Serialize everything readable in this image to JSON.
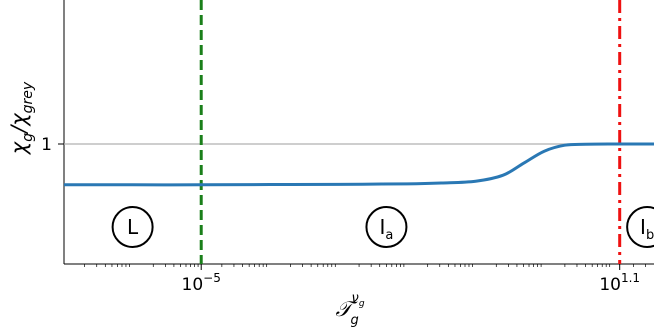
{
  "chart_data": {
    "type": "line",
    "title": "",
    "xlabel": "𝒯_g^{ν_g}",
    "ylabel": "χ_g/χ_grey",
    "x_scale": "log",
    "xlim": [
      -7.0,
      1.6
    ],
    "ylim": [
      0.0,
      2.2
    ],
    "grid": false,
    "legend": "none",
    "x_ticks": [
      {
        "value": -5,
        "base": "10",
        "exponent": "−5"
      },
      {
        "value": 1.1,
        "base": "10",
        "exponent": "1.1"
      }
    ],
    "y_ticks": [
      {
        "value": 1,
        "label": "1"
      }
    ],
    "reference_line": {
      "y": 1,
      "color": "#b0b0b0"
    },
    "vlines": [
      {
        "x": -5,
        "style": "dashed",
        "color": "#1a7f1a"
      },
      {
        "x": 1.1,
        "style": "dashdot",
        "color": "#ee1111"
      }
    ],
    "regions": [
      {
        "label": "L",
        "sub": "",
        "x": -6.0
      },
      {
        "label": "I",
        "sub": "a",
        "x": -2.3
      },
      {
        "label": "I",
        "sub": "b",
        "x": 1.5
      }
    ],
    "series": [
      {
        "color": "#2a78b4",
        "x": [
          -7.0,
          -6.0,
          -5.0,
          -4.0,
          -3.0,
          -2.0,
          -1.5,
          -1.0,
          -0.6,
          -0.3,
          0.0,
          0.3,
          0.6,
          1.0,
          1.6
        ],
        "y": [
          0.66,
          0.66,
          0.66,
          0.662,
          0.664,
          0.668,
          0.675,
          0.69,
          0.74,
          0.84,
          0.94,
          0.99,
          0.998,
          1.0,
          1.0
        ]
      }
    ]
  }
}
